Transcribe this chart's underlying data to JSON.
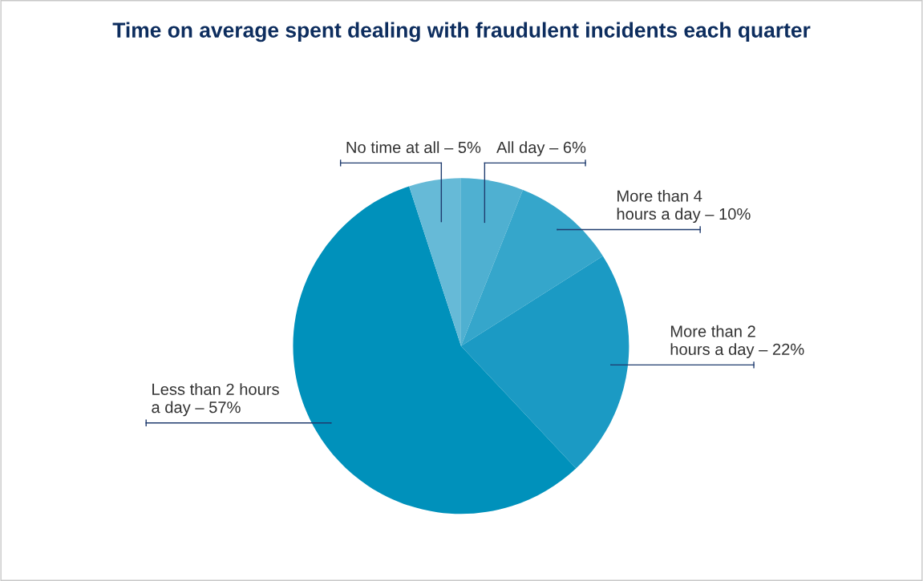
{
  "chart_data": {
    "type": "pie",
    "title": "Time on average spent dealing with fraudulent incidents each quarter",
    "categories": [
      "All day – 6%",
      "More than 4\nhours a day – 10%",
      "More than 2\nhours a day – 22%",
      "Less than 2 hours\na day – 57%",
      "No time at all – 5%"
    ],
    "values": [
      6,
      10,
      22,
      57,
      5
    ],
    "colors": [
      "#4fb0d1",
      "#35a6cb",
      "#1b9ac4",
      "#0091bb",
      "#66bad7"
    ]
  }
}
